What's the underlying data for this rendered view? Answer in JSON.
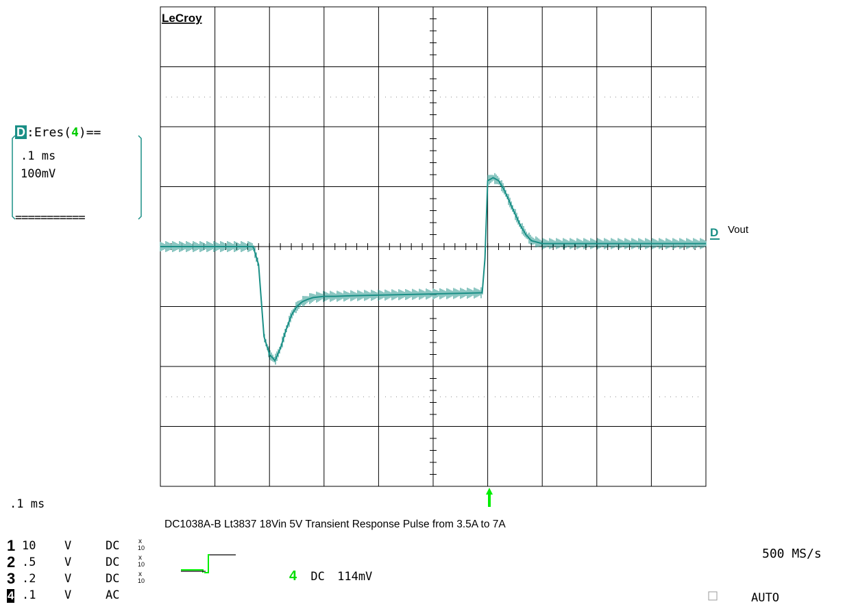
{
  "chart_data": {
    "type": "line",
    "brand": "LeCroy",
    "title": "DC1038A-B Lt3837 18Vin 5V Transient Response Pulse from 3.5A to 7A",
    "trace_label": "Vout",
    "trace_marker": "D",
    "x_unit": "ms",
    "y_unit": "mV",
    "time_per_div_ms": 0.1,
    "volts_per_div_mV": 100,
    "xlim": [
      -0.5,
      0.5
    ],
    "ylim": [
      -400,
      400
    ],
    "grid": true,
    "series": [
      {
        "x": [
          -0.5,
          -0.33,
          -0.32,
          -0.31,
          -0.3,
          -0.29,
          -0.28,
          -0.27,
          -0.26,
          -0.25,
          -0.24,
          -0.23,
          -0.22,
          -0.21,
          -0.2,
          -0.18,
          -0.15,
          -0.1,
          -0.05,
          0.0,
          0.05,
          0.09,
          0.095,
          0.1,
          0.11,
          0.12,
          0.13,
          0.14,
          0.15,
          0.16,
          0.17,
          0.18,
          0.2,
          0.25,
          0.3,
          0.35,
          0.4,
          0.5
        ],
        "y": [
          0,
          0,
          -30,
          -150,
          -180,
          -190,
          -170,
          -140,
          -115,
          -100,
          -92,
          -88,
          -85,
          -84,
          -83,
          -83,
          -82,
          -81,
          -80,
          -79,
          -78,
          -77,
          -20,
          110,
          115,
          110,
          95,
          75,
          55,
          35,
          20,
          10,
          5,
          5,
          5,
          5,
          5,
          5
        ]
      }
    ]
  },
  "panel": {
    "marker": "D",
    "label_prefix": ":Eres(",
    "label_channel": "4",
    "label_suffix": ")==",
    "timebase": ".1 ms",
    "vdiv": "100mV",
    "bottom_rule": "==========="
  },
  "footer": {
    "timebase": ".1 ms",
    "sample_rate": "500 MS/s",
    "trigger_mode": "AUTO",
    "trigger_channel": "4",
    "trigger_coupling": "DC",
    "trigger_level": "114mV"
  },
  "channels": [
    {
      "num": "1",
      "scale": "10",
      "unit": "V",
      "coupling": "DC",
      "probe_top": "x",
      "probe_bottom": "10"
    },
    {
      "num": "2",
      "scale": ".5",
      "unit": "V",
      "coupling": "DC",
      "probe_top": "x",
      "probe_bottom": "10"
    },
    {
      "num": "3",
      "scale": ".2",
      "unit": "V",
      "coupling": "DC",
      "probe_top": "x",
      "probe_bottom": "10"
    },
    {
      "num": "4",
      "scale": ".1",
      "unit": "V",
      "coupling": "AC",
      "probe_top": "",
      "probe_bottom": ""
    }
  ],
  "colors": {
    "trace": "#1a8f86",
    "trigger": "#00ee00",
    "grid": "#000000",
    "dots": "#888888"
  }
}
